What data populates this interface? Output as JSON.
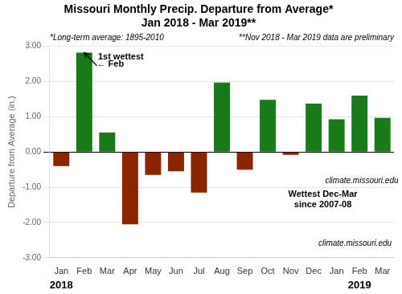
{
  "chart_data": {
    "type": "bar",
    "title": "Missouri Monthly Precip. Departure from Average*",
    "subtitle": "Jan 2018 - Mar 2019**",
    "ylabel": "Departure from Average (in.)",
    "categories": [
      "Jan",
      "Feb",
      "Mar",
      "Apr",
      "May",
      "Jun",
      "Jul",
      "Aug",
      "Sep",
      "Oct",
      "Nov",
      "Dec",
      "Jan",
      "Feb",
      "Mar"
    ],
    "values": [
      -0.4,
      2.82,
      0.55,
      -2.05,
      -0.65,
      -0.55,
      -1.15,
      1.97,
      -0.5,
      1.48,
      -0.08,
      1.37,
      0.93,
      1.6,
      0.97
    ],
    "colors": [
      "#8B2500",
      "#1a7a1a",
      "#1a7a1a",
      "#8B2500",
      "#8B2500",
      "#8B2500",
      "#8B2500",
      "#1a7a1a",
      "#8B2500",
      "#1a7a1a",
      "#8B2500",
      "#1a7a1a",
      "#1a7a1a",
      "#1a7a1a",
      "#1a7a1a"
    ],
    "ylim": [
      -3.0,
      3.0
    ],
    "yticks": [
      {
        "value": -3.0,
        "label": "-3.00"
      },
      {
        "value": -2.0,
        "label": "-2.00"
      },
      {
        "value": -1.0,
        "label": "-1.00"
      },
      {
        "value": 0.0,
        "label": "0.00"
      },
      {
        "value": 1.0,
        "label": "1.00"
      },
      {
        "value": 2.0,
        "label": "2.00"
      },
      {
        "value": 3.0,
        "label": "3.00"
      }
    ],
    "grid": true,
    "annotations": [
      "*Long-term average: 1895-2010",
      "**Nov 2018 - Mar 2019 data are preliminary",
      "2018",
      "2019",
      "1st wettest",
      "← Feb",
      "climate.missouri.edu",
      "Wettest Dec-Mar\nsince 2007-08",
      "climate.missouri.edu"
    ]
  }
}
